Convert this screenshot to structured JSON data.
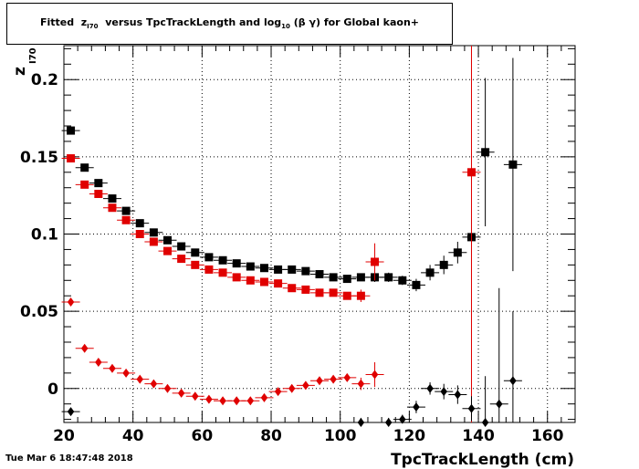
{
  "header": {
    "title_prefix": "Fitted",
    "title_z": "z",
    "title_z_sub": "I70",
    "title_mid": "versus TpcTrackLength and log",
    "title_log_sub": "10",
    "title_suffix": "(β γ) for Global kaon+"
  },
  "footer": {
    "timestamp": "Tue Mar  6 18:47:48 2018"
  },
  "chart_data": {
    "type": "scatter",
    "xlabel": "TpcTrackLength (cm)",
    "ylabel": "z",
    "ylabel_sub": "I70",
    "xlim": [
      20,
      168
    ],
    "ylim": [
      -0.022,
      0.222
    ],
    "x_ticks": [
      20,
      40,
      60,
      80,
      100,
      120,
      140,
      160
    ],
    "x_tick_labels": [
      "20",
      "40",
      "60",
      "80",
      "100",
      "120",
      "140",
      "160"
    ],
    "y_ticks": [
      0,
      0.05,
      0.1,
      0.15,
      0.2
    ],
    "y_tick_labels": [
      "0",
      "0.05",
      "0.1",
      "0.15",
      "0.2"
    ],
    "grid": true,
    "series": [
      {
        "color": "#000000",
        "marker": "square",
        "points": [
          [
            22,
            0.167
          ],
          [
            26,
            0.143
          ],
          [
            30,
            0.133
          ],
          [
            34,
            0.123
          ],
          [
            38,
            0.115
          ],
          [
            42,
            0.107
          ],
          [
            46,
            0.101
          ],
          [
            50,
            0.096
          ],
          [
            54,
            0.092
          ],
          [
            58,
            0.088
          ],
          [
            62,
            0.085
          ],
          [
            66,
            0.083
          ],
          [
            70,
            0.081
          ],
          [
            74,
            0.079
          ],
          [
            78,
            0.078
          ],
          [
            82,
            0.077
          ],
          [
            86,
            0.077
          ],
          [
            90,
            0.076
          ],
          [
            94,
            0.074
          ],
          [
            98,
            0.072
          ],
          [
            102,
            0.071
          ],
          [
            106,
            0.072
          ],
          [
            110,
            0.072
          ],
          [
            114,
            0.072
          ],
          [
            118,
            0.07
          ],
          [
            122,
            0.067
          ],
          [
            126,
            0.075
          ],
          [
            130,
            0.08
          ],
          [
            134,
            0.088
          ],
          [
            138,
            0.098
          ],
          [
            142,
            0.153
          ],
          [
            150,
            0.145
          ]
        ],
        "errors": [
          0.002,
          0.002,
          0.002,
          0.002,
          0.002,
          0.002,
          0.002,
          0.002,
          0.002,
          0.002,
          0.002,
          0.002,
          0.002,
          0.002,
          0.002,
          0.002,
          0.002,
          0.002,
          0.002,
          0.002,
          0.002,
          0.002,
          0.003,
          0.003,
          0.003,
          0.004,
          0.005,
          0.006,
          0.007,
          0.012,
          0.048,
          0.069
        ]
      },
      {
        "color": "#e00000",
        "marker": "square",
        "points": [
          [
            22,
            0.149
          ],
          [
            26,
            0.132
          ],
          [
            30,
            0.126
          ],
          [
            34,
            0.117
          ],
          [
            38,
            0.109
          ],
          [
            42,
            0.1
          ],
          [
            46,
            0.095
          ],
          [
            50,
            0.089
          ],
          [
            54,
            0.084
          ],
          [
            58,
            0.08
          ],
          [
            62,
            0.077
          ],
          [
            66,
            0.075
          ],
          [
            70,
            0.072
          ],
          [
            74,
            0.07
          ],
          [
            78,
            0.069
          ],
          [
            82,
            0.068
          ],
          [
            86,
            0.065
          ],
          [
            90,
            0.064
          ],
          [
            94,
            0.062
          ],
          [
            98,
            0.062
          ],
          [
            102,
            0.06
          ],
          [
            106,
            0.06
          ],
          [
            110,
            0.082
          ],
          [
            138,
            0.14
          ]
        ],
        "errors": [
          0.002,
          0.002,
          0.002,
          0.002,
          0.002,
          0.002,
          0.002,
          0.002,
          0.002,
          0.002,
          0.002,
          0.002,
          0.002,
          0.002,
          0.002,
          0.002,
          0.002,
          0.002,
          0.002,
          0.002,
          0.002,
          0.004,
          0.012,
          0.35
        ]
      },
      {
        "color": "#e00000",
        "marker": "diamond",
        "points": [
          [
            22,
            0.056
          ],
          [
            26,
            0.026
          ],
          [
            30,
            0.017
          ],
          [
            34,
            0.013
          ],
          [
            38,
            0.01
          ],
          [
            42,
            0.006
          ],
          [
            46,
            0.003
          ],
          [
            50,
            0.0
          ],
          [
            54,
            -0.003
          ],
          [
            58,
            -0.005
          ],
          [
            62,
            -0.007
          ],
          [
            66,
            -0.008
          ],
          [
            70,
            -0.008
          ],
          [
            74,
            -0.008
          ],
          [
            78,
            -0.006
          ],
          [
            82,
            -0.002
          ],
          [
            86,
            0.0
          ],
          [
            90,
            0.002
          ],
          [
            94,
            0.005
          ],
          [
            98,
            0.006
          ],
          [
            102,
            0.007
          ],
          [
            106,
            0.003
          ],
          [
            110,
            0.009
          ]
        ],
        "errors": [
          0.002,
          0.001,
          0.001,
          0.001,
          0.001,
          0.001,
          0.001,
          0.001,
          0.001,
          0.001,
          0.001,
          0.001,
          0.001,
          0.001,
          0.001,
          0.001,
          0.001,
          0.001,
          0.001,
          0.002,
          0.002,
          0.004,
          0.008
        ]
      },
      {
        "color": "#000000",
        "marker": "diamond",
        "points": [
          [
            22,
            -0.015
          ],
          [
            106,
            -0.022
          ],
          [
            114,
            -0.022
          ],
          [
            118,
            -0.02
          ],
          [
            122,
            -0.012
          ],
          [
            126,
            0.0
          ],
          [
            130,
            -0.002
          ],
          [
            134,
            -0.004
          ],
          [
            138,
            -0.013
          ],
          [
            142,
            -0.022
          ],
          [
            146,
            -0.01
          ],
          [
            150,
            0.005
          ]
        ],
        "errors": [
          0.002,
          0.003,
          0.003,
          0.003,
          0.004,
          0.004,
          0.005,
          0.006,
          0.008,
          0.03,
          0.075,
          0.045
        ]
      }
    ],
    "annotations": [
      {
        "type": "vertical-line",
        "x": 138,
        "color": "#e00000"
      }
    ]
  }
}
